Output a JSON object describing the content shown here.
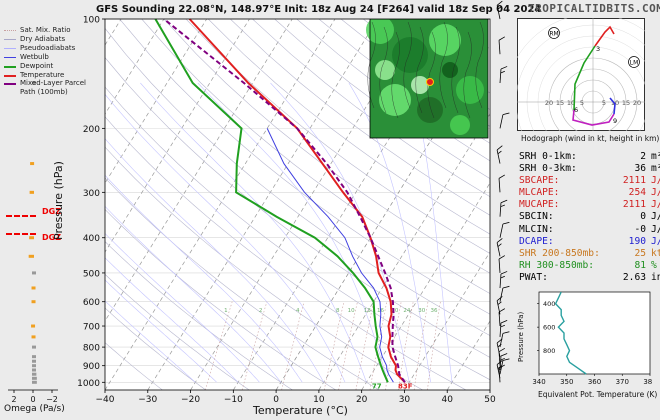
{
  "header": {
    "title": "GFS Sounding 22.08°N, 148.97°E Init: 18z Aug 24 [F264] valid 18z Sep 04 2024",
    "brand": "TROPICALTIDBITS.COM"
  },
  "legend": [
    {
      "label": "Sat. Mix. Ratio",
      "color": "#c8a0a0",
      "style": "dotted",
      "width": 1
    },
    {
      "label": "Dry Adiabats",
      "color": "#a8a8c8",
      "style": "solid",
      "width": 1
    },
    {
      "label": "Pseudoadiabats",
      "color": "#b0b0ff",
      "style": "solid",
      "width": 1
    },
    {
      "label": "Wetbulb",
      "color": "#4040e0",
      "style": "solid",
      "width": 1
    },
    {
      "label": "Dewpoint",
      "color": "#20a020",
      "style": "solid",
      "width": 2
    },
    {
      "label": "Temperature",
      "color": "#e02020",
      "style": "solid",
      "width": 2
    },
    {
      "label": "Mixed-Layer Parcel Path (100mb)",
      "color": "#800080",
      "style": "dashed",
      "width": 2
    }
  ],
  "axes": {
    "ylabel": "Pressure (hPa)",
    "xlabel": "Temperature (°C)",
    "omega_label": "Omega (Pa/s)",
    "omega_ticks": [
      "2",
      "0",
      "−2"
    ]
  },
  "dgz": {
    "label": "DGZ"
  },
  "surface_labels": {
    "dewpoint": "77",
    "temperature": "83F"
  },
  "hodograph": {
    "caption": "Hodograph (wind in kt, height in km)",
    "rings": [
      "5",
      "10",
      "15",
      "20"
    ],
    "markers": [
      "RM",
      "LM"
    ],
    "height_labels": [
      "3",
      "6",
      "9"
    ]
  },
  "params": [
    {
      "label": "SRH 0-1km:",
      "value": "2",
      "unit": "m²s⁻²",
      "color": "#000000"
    },
    {
      "label": "SRH 0-3km:",
      "value": "36",
      "unit": "m²s⁻²",
      "color": "#000000"
    },
    {
      "label": "SBCAPE:",
      "value": "2111",
      "unit": "J/kg",
      "color": "#d02020"
    },
    {
      "label": "MLCAPE:",
      "value": "254",
      "unit": "J/kg",
      "color": "#d02020"
    },
    {
      "label": "MUCAPE:",
      "value": "2111",
      "unit": "J/kg",
      "color": "#d02020"
    },
    {
      "label": "SBCIN:",
      "value": "0",
      "unit": "J/kg",
      "color": "#000000"
    },
    {
      "label": "MLCIN:",
      "value": "-0",
      "unit": "J/kg",
      "color": "#000000"
    },
    {
      "label": "DCAPE:",
      "value": "190",
      "unit": "J/kg",
      "color": "#2020d0"
    },
    {
      "label": "SHR 200-850mb:",
      "value": "25",
      "unit": "kt",
      "color": "#c87820"
    },
    {
      "label": "RH 300-850mb:",
      "value": "81",
      "unit": "%",
      "color": "#209020"
    },
    {
      "label": "PWAT:",
      "value": "2.63",
      "unit": "in",
      "color": "#000000"
    }
  ],
  "thetae": {
    "xlabel": "Equivalent Pot. Temperature (K)",
    "ylabel": "Pressure (hPa)",
    "xticks": [
      340,
      350,
      360,
      370,
      380
    ],
    "yticks": [
      400,
      600,
      800
    ]
  },
  "chart_data": [
    {
      "type": "line",
      "subtype": "skew-t",
      "title": "GFS Sounding 22.08°N, 148.97°E Init: 18z Aug 24 [F264] valid 18z Sep 04 2024",
      "xlabel": "Temperature (°C)",
      "ylabel": "Pressure (hPa)",
      "xlim": [
        -40,
        50
      ],
      "ylim": [
        1050,
        100
      ],
      "yscale": "log",
      "xticks": [
        -40,
        -30,
        -20,
        -10,
        0,
        10,
        20,
        30,
        40,
        50
      ],
      "yticks": [
        100,
        200,
        300,
        400,
        500,
        600,
        700,
        800,
        900,
        1000
      ],
      "mixing_ratio_labels": [
        1,
        2,
        4,
        8,
        10,
        13,
        16,
        20,
        24,
        30,
        36
      ],
      "series": [
        {
          "name": "Temperature",
          "color": "#e02020",
          "points": [
            [
              1000,
              29
            ],
            [
              950,
              26
            ],
            [
              925,
              25
            ],
            [
              900,
              24.5
            ],
            [
              850,
              22
            ],
            [
              800,
              20
            ],
            [
              750,
              19
            ],
            [
              700,
              17
            ],
            [
              650,
              16
            ],
            [
              600,
              14
            ],
            [
              550,
              11
            ],
            [
              500,
              7
            ],
            [
              450,
              4
            ],
            [
              400,
              0
            ],
            [
              350,
              -5
            ],
            [
              300,
              -13
            ],
            [
              250,
              -22
            ],
            [
              200,
              -33
            ],
            [
              150,
              -51
            ],
            [
              100,
              -74
            ]
          ]
        },
        {
          "name": "Dewpoint",
          "color": "#20a020",
          "points": [
            [
              1000,
              25
            ],
            [
              950,
              23
            ],
            [
              925,
              22
            ],
            [
              900,
              21
            ],
            [
              850,
              19
            ],
            [
              800,
              17
            ],
            [
              750,
              16
            ],
            [
              700,
              14
            ],
            [
              650,
              12
            ],
            [
              600,
              10
            ],
            [
              550,
              6
            ],
            [
              500,
              1
            ],
            [
              450,
              -5
            ],
            [
              400,
              -13
            ],
            [
              350,
              -25
            ],
            [
              300,
              -38
            ],
            [
              250,
              -42
            ],
            [
              200,
              -46
            ],
            [
              150,
              -64
            ],
            [
              100,
              -82
            ]
          ]
        },
        {
          "name": "Wetbulb",
          "color": "#4040e0",
          "points": [
            [
              1000,
              26.3
            ],
            [
              950,
              24
            ],
            [
              925,
              23
            ],
            [
              900,
              22.3
            ],
            [
              850,
              20
            ],
            [
              800,
              18
            ],
            [
              750,
              17
            ],
            [
              700,
              15
            ],
            [
              650,
              13.5
            ],
            [
              600,
              11.5
            ],
            [
              550,
              8
            ],
            [
              500,
              3
            ],
            [
              450,
              -1.5
            ],
            [
              400,
              -6
            ],
            [
              350,
              -13
            ],
            [
              300,
              -22
            ],
            [
              250,
              -31
            ],
            [
              200,
              -40
            ]
          ]
        },
        {
          "name": "Mixed-Layer Parcel Path (100mb)",
          "color": "#800080",
          "points": [
            [
              1000,
              29
            ],
            [
              950,
              26.5
            ],
            [
              900,
              25
            ],
            [
              850,
              23
            ],
            [
              800,
              21
            ],
            [
              750,
              19.5
            ],
            [
              700,
              18
            ],
            [
              650,
              16.5
            ],
            [
              600,
              14.5
            ],
            [
              550,
              12
            ],
            [
              500,
              8.5
            ],
            [
              450,
              4.5
            ],
            [
              400,
              0
            ],
            [
              350,
              -5.5
            ],
            [
              300,
              -12
            ],
            [
              250,
              -21
            ],
            [
              200,
              -33
            ],
            [
              150,
              -52
            ],
            [
              100,
              -80
            ]
          ]
        }
      ]
    },
    {
      "type": "line",
      "title": "",
      "xlabel": "Equivalent Pot. Temperature (K)",
      "ylabel": "Pressure (hPa)",
      "xlim": [
        340,
        380
      ],
      "ylim": [
        1000,
        300
      ],
      "series": [
        {
          "name": "",
          "color": "#2aa0a0",
          "points": [
            [
              1000,
              357
            ],
            [
              950,
              354
            ],
            [
              900,
              351
            ],
            [
              850,
              350
            ],
            [
              800,
              351
            ],
            [
              750,
              350
            ],
            [
              700,
              349
            ],
            [
              650,
              349
            ],
            [
              600,
              347
            ],
            [
              550,
              349
            ],
            [
              500,
              348
            ],
            [
              450,
              348
            ],
            [
              400,
              346
            ],
            [
              350,
              347
            ],
            [
              300,
              348
            ]
          ]
        }
      ]
    },
    {
      "type": "scatter",
      "title": "",
      "xlabel": "Omega (Pa/s)",
      "ylabel": "",
      "xlim": [
        2,
        -2
      ],
      "points": [
        [
          1000,
          -0.3
        ],
        [
          975,
          -0.3
        ],
        [
          950,
          -0.25
        ],
        [
          925,
          -0.2
        ],
        [
          900,
          -0.2
        ],
        [
          875,
          -0.15
        ],
        [
          850,
          -0.1
        ],
        [
          800,
          -0.05
        ],
        [
          750,
          0.05
        ],
        [
          700,
          0.1
        ],
        [
          600,
          0.05
        ],
        [
          550,
          0.05
        ],
        [
          500,
          -0.02
        ],
        [
          450,
          0.35
        ],
        [
          400,
          0.3
        ],
        [
          300,
          0.25
        ],
        [
          250,
          0.2
        ],
        [
          150,
          -0.05
        ]
      ]
    }
  ]
}
